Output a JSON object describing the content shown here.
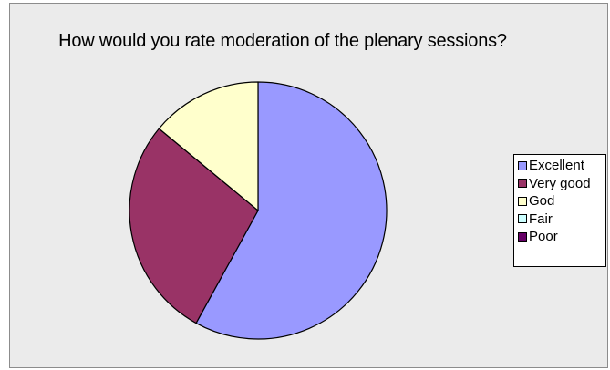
{
  "chart_data": {
    "type": "pie",
    "title": "How would you rate moderation of the plenary sessions?",
    "categories": [
      "Excellent",
      "Very good",
      "God",
      "Fair",
      "Poor"
    ],
    "values": [
      58,
      28,
      14,
      0,
      0
    ],
    "colors": [
      "#9999ff",
      "#993366",
      "#ffffcc",
      "#ccffff",
      "#660066"
    ],
    "legend_position": "right"
  }
}
